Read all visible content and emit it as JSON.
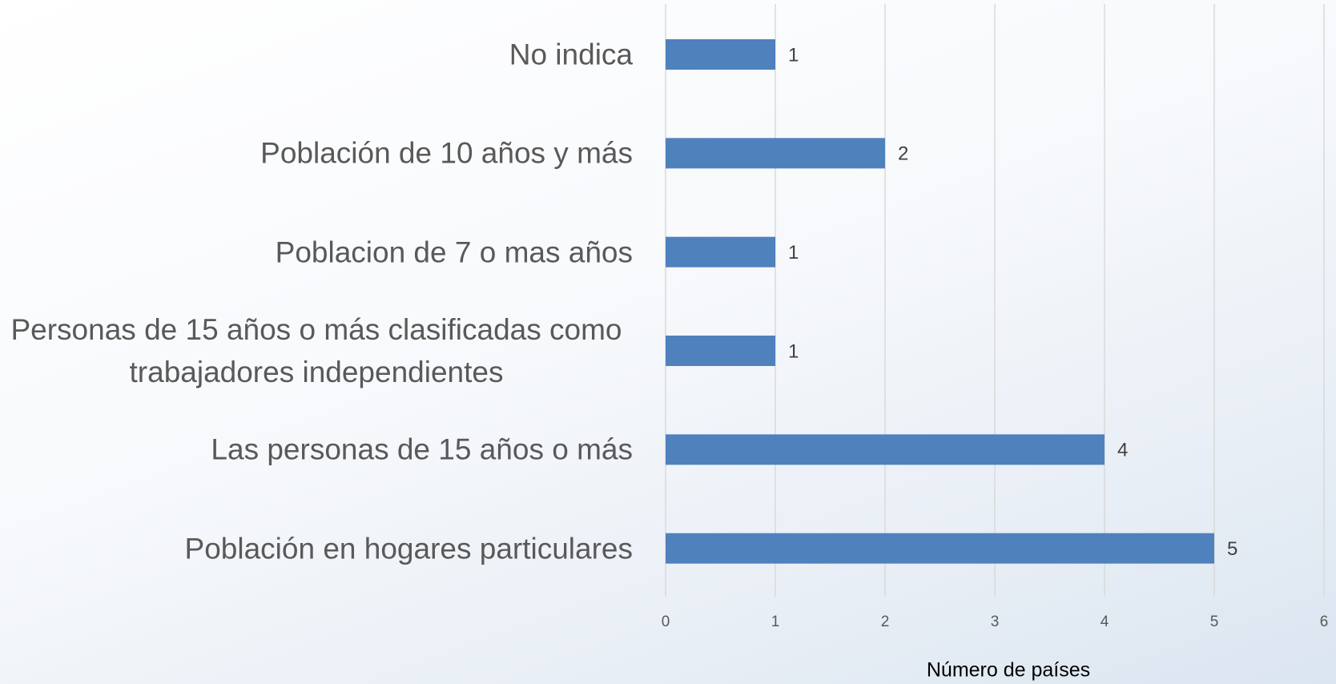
{
  "chart_data": {
    "type": "barh",
    "categories": [
      "No indica",
      "Población de 10 años y más",
      "Poblacion de 7 o mas años",
      "Personas de 15 años o más clasificadas como trabajadores independientes",
      "Las personas de 15 años o más",
      "Población en hogares particulares"
    ],
    "values": [
      1,
      2,
      1,
      1,
      4,
      5
    ],
    "color": "#4f81bd",
    "xlabel": "Número de países",
    "xlim": [
      0,
      6
    ],
    "xticks": [
      0,
      1,
      2,
      3,
      4,
      5,
      6
    ],
    "grid": true
  }
}
